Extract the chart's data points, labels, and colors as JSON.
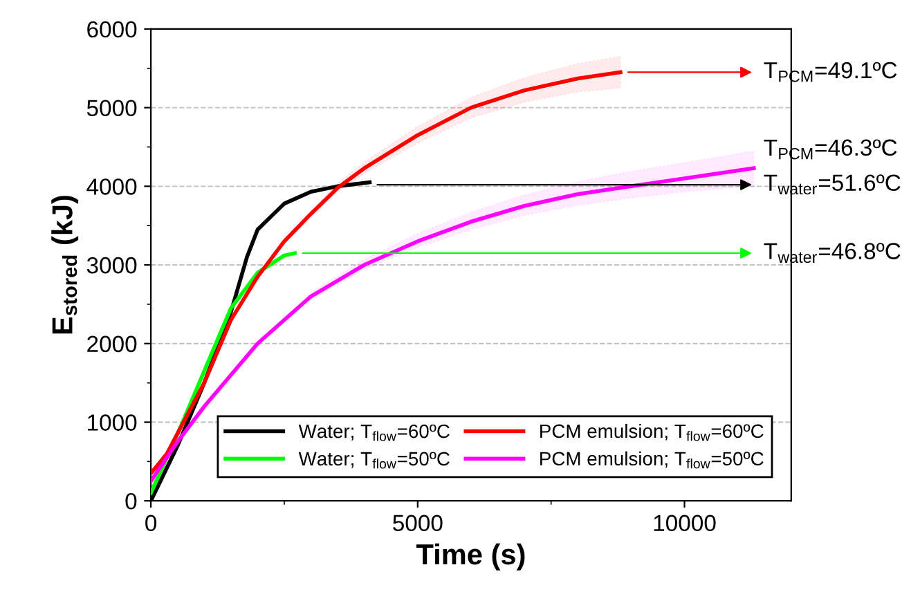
{
  "chart_data": {
    "type": "line",
    "xlabel": "Time (s)",
    "ylabel": "E$_{stored}$ (kJ)",
    "xlim": [
      0,
      12000
    ],
    "ylim": [
      0,
      6000
    ],
    "xticks": [
      0,
      5000,
      10000
    ],
    "yticks": [
      0,
      1000,
      2000,
      3000,
      4000,
      5000,
      6000
    ],
    "grid": "y",
    "legend": "bottom right",
    "line_style": "solid",
    "marker": "none",
    "series": [
      {
        "name": "Water; T$_{flow}$=60ºC",
        "color": "#000000",
        "x": [
          0,
          500,
          1000,
          1500,
          1800,
          2000,
          2500,
          3000,
          3500,
          4100
        ],
        "values": [
          0,
          700,
          1500,
          2400,
          3100,
          3450,
          3780,
          3930,
          4000,
          4050
        ]
      },
      {
        "name": "Water; T$_{flow}$=50ºC",
        "color": "#00ff00",
        "x": [
          0,
          500,
          1000,
          1500,
          2000,
          2500,
          2700
        ],
        "values": [
          100,
          850,
          1650,
          2450,
          2900,
          3120,
          3150
        ]
      },
      {
        "name": "PCM emulsion; T$_{flow}$=60ºC",
        "color": "#ff0000",
        "x": [
          0,
          300,
          1000,
          1500,
          2000,
          2500,
          3000,
          3500,
          4000,
          5000,
          6000,
          7000,
          8000,
          8800
        ],
        "values": [
          350,
          600,
          1500,
          2300,
          2850,
          3300,
          3650,
          3980,
          4230,
          4650,
          5000,
          5220,
          5370,
          5450
        ],
        "lower": [
          350,
          600,
          1500,
          2300,
          2850,
          3280,
          3620,
          3930,
          4160,
          4550,
          4870,
          5070,
          5200,
          5250
        ],
        "upper": [
          350,
          600,
          1500,
          2300,
          2850,
          3320,
          3690,
          4040,
          4310,
          4760,
          5130,
          5380,
          5560,
          5650
        ]
      },
      {
        "name": "PCM emulsion; T$_{flow}$=50ºC",
        "color": "#ff00ff",
        "x": [
          0,
          500,
          1000,
          2000,
          3000,
          4000,
          5000,
          6000,
          7000,
          8000,
          9000,
          10000,
          11300
        ],
        "values": [
          250,
          750,
          1200,
          2000,
          2600,
          3000,
          3300,
          3550,
          3750,
          3900,
          4000,
          4100,
          4230
        ],
        "lower": [
          250,
          750,
          1200,
          1980,
          2560,
          2940,
          3220,
          3450,
          3630,
          3760,
          3850,
          3930,
          4000
        ],
        "upper": [
          250,
          750,
          1200,
          2020,
          2650,
          3070,
          3400,
          3670,
          3890,
          4060,
          4190,
          4300,
          4450
        ]
      }
    ],
    "annotations": [
      {
        "text": "T$_{PCM}$=49.1ºC",
        "x": 8800,
        "y": 5450
      },
      {
        "text": "T$_{PCM}$=46.3ºC",
        "x": 11300,
        "y": 4230
      },
      {
        "text": "T$_{water}$=51.6ºC",
        "x": 4100,
        "y": 4020
      },
      {
        "text": "T$_{water}$=46.8ºC",
        "x": 2700,
        "y": 3150
      }
    ]
  }
}
